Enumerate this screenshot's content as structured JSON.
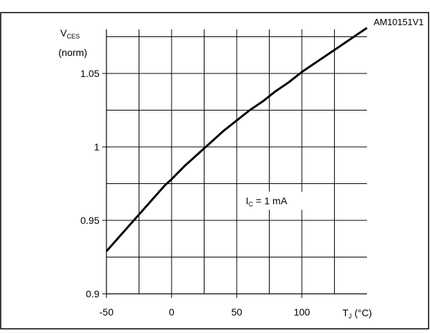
{
  "chart_data": {
    "type": "line",
    "id_label": "AM10151V1",
    "ylabel": {
      "main": "V",
      "sub": "CES",
      "unit": "(norm)"
    },
    "xlabel": {
      "main": "T",
      "sub": "J",
      "unit": "(°C)"
    },
    "xlim": [
      -50,
      150
    ],
    "ylim": [
      0.9,
      1.08
    ],
    "x_ticks": [
      -50,
      0,
      50,
      100
    ],
    "x_tick_labels": [
      "-50",
      "0",
      "50",
      "100"
    ],
    "x_grid": [
      -25,
      0,
      25,
      50,
      75,
      100,
      125
    ],
    "y_ticks": [
      0.9,
      0.95,
      1.0,
      1.05
    ],
    "y_tick_labels": [
      "0.9",
      "0.95",
      "1",
      "1.05"
    ],
    "y_grid": [
      0.925,
      0.95,
      0.975,
      1.0,
      1.025,
      1.05,
      1.075
    ],
    "grid": true,
    "annotation": {
      "main": "I",
      "sub": "C",
      "rest": " = 1 mA",
      "x": 57,
      "y": 0.961
    },
    "series": [
      {
        "values_x": [
          -50,
          -40,
          -30,
          -20,
          -10,
          -5,
          0,
          10,
          20,
          30,
          40,
          50,
          60,
          70,
          80,
          90,
          100,
          110,
          120,
          130,
          140,
          150
        ],
        "values_y": [
          0.929,
          0.939,
          0.949,
          0.959,
          0.969,
          0.974,
          0.978,
          0.987,
          0.995,
          1.003,
          1.011,
          1.018,
          1.025,
          1.031,
          1.038,
          1.044,
          1.051,
          1.057,
          1.063,
          1.069,
          1.075,
          1.081
        ]
      }
    ]
  }
}
